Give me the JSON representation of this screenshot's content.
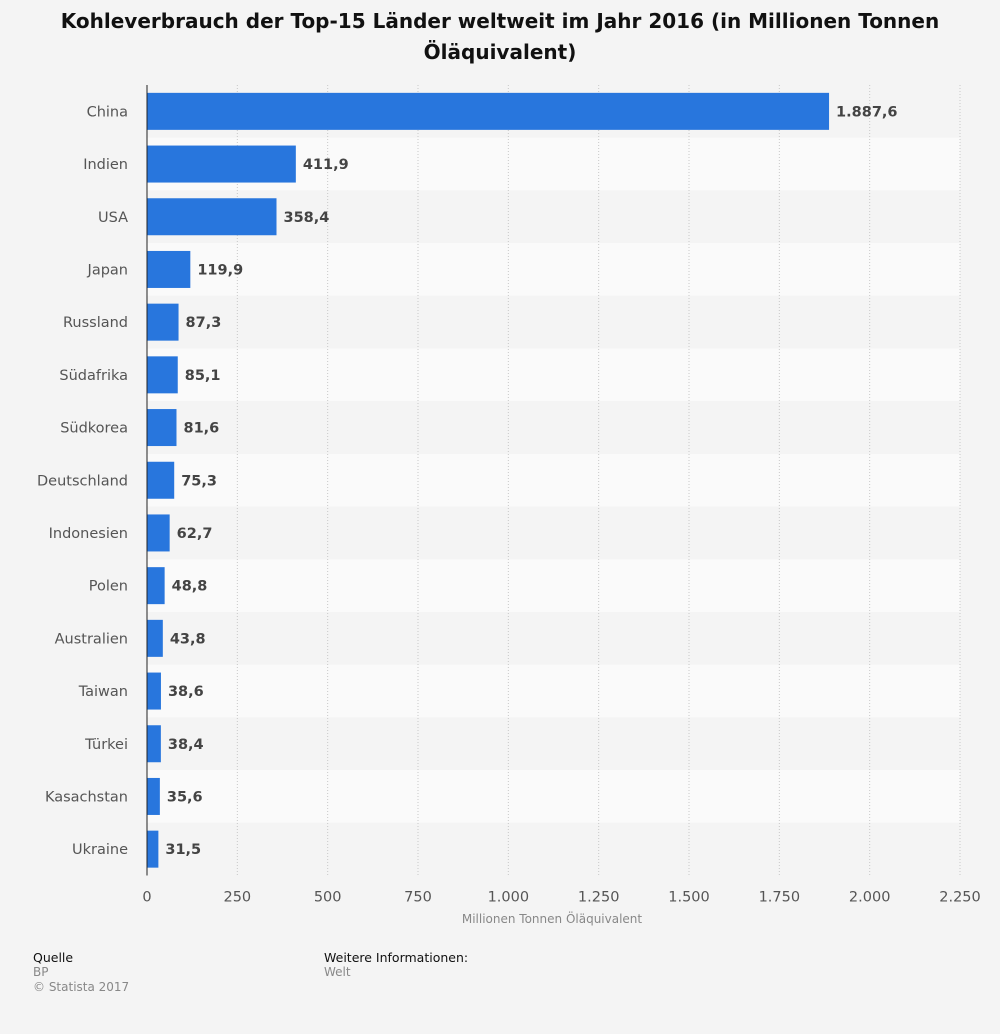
{
  "chart_data": {
    "type": "bar",
    "orientation": "horizontal",
    "title": "Kohleverbrauch der Top-15 Länder weltweit im Jahr 2016 (in Millionen Tonnen Öläquivalent)",
    "xlabel": "Millionen Tonnen Öläquivalent",
    "ylabel": "",
    "xlim": [
      0,
      2250
    ],
    "ticks": [
      0,
      250,
      500,
      750,
      1000,
      1250,
      1500,
      1750,
      2000,
      2250
    ],
    "tick_labels": [
      "0",
      "250",
      "500",
      "750",
      "1.000",
      "1.250",
      "1.500",
      "1.750",
      "2.000",
      "2.250"
    ],
    "grid": true,
    "categories": [
      "China",
      "Indien",
      "USA",
      "Japan",
      "Russland",
      "Südafrika",
      "Südkorea",
      "Deutschland",
      "Indonesien",
      "Polen",
      "Australien",
      "Taiwan",
      "Türkei",
      "Kasachstan",
      "Ukraine"
    ],
    "values": [
      1887.6,
      411.9,
      358.4,
      119.9,
      87.3,
      85.1,
      81.6,
      75.3,
      62.7,
      48.8,
      43.8,
      38.6,
      38.4,
      35.6,
      31.5
    ],
    "value_labels": [
      "1.887,6",
      "411,9",
      "358,4",
      "119,9",
      "87,3",
      "85,1",
      "81,6",
      "75,3",
      "62,7",
      "48,8",
      "43,8",
      "38,6",
      "38,4",
      "35,6",
      "31,5"
    ],
    "bar_color": "#2876dd"
  },
  "footer": {
    "source_heading": "Quelle",
    "source": "BP",
    "copyright": "© Statista 2017",
    "info_heading": "Weitere Informationen:",
    "info": "Welt"
  }
}
